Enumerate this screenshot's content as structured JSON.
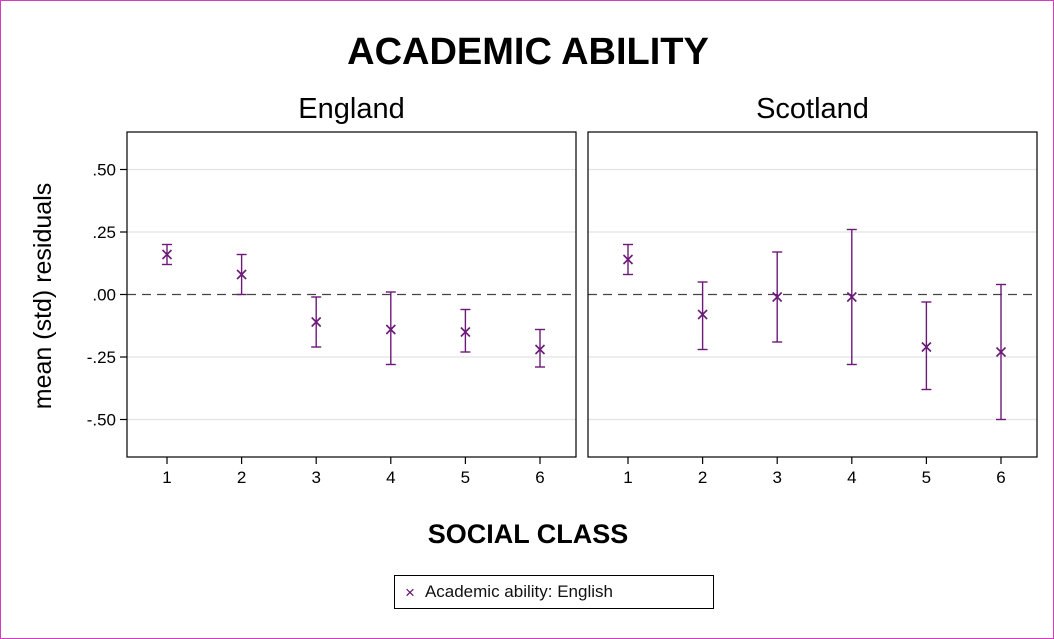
{
  "chart_data": {
    "type": "scatter",
    "subtype": "error-bar",
    "title": "ACADEMIC ABILITY",
    "xlabel": "SOCIAL CLASS",
    "ylabel": "mean (std) residuals",
    "ylim": [
      -0.65,
      0.65
    ],
    "yticks": [
      0.5,
      0.25,
      0.0,
      -0.25,
      -0.5
    ],
    "ytick_labels": [
      ".50",
      ".25",
      ".00",
      "-.25",
      "-.50"
    ],
    "categories": [
      "1",
      "2",
      "3",
      "4",
      "5",
      "6"
    ],
    "grid": true,
    "reference_line": {
      "y": 0,
      "style": "dashed"
    },
    "legend": {
      "position": "bottom-center",
      "entries": [
        "Academic ability: English"
      ]
    },
    "series_color": "#6b1a78",
    "panels": [
      {
        "name": "England",
        "points": [
          {
            "x": "1",
            "mean": 0.16,
            "low": 0.12,
            "high": 0.2
          },
          {
            "x": "2",
            "mean": 0.08,
            "low": 0.0,
            "high": 0.16
          },
          {
            "x": "3",
            "mean": -0.11,
            "low": -0.21,
            "high": -0.01
          },
          {
            "x": "4",
            "mean": -0.14,
            "low": -0.28,
            "high": 0.01
          },
          {
            "x": "5",
            "mean": -0.15,
            "low": -0.23,
            "high": -0.06
          },
          {
            "x": "6",
            "mean": -0.22,
            "low": -0.29,
            "high": -0.14
          }
        ]
      },
      {
        "name": "Scotland",
        "points": [
          {
            "x": "1",
            "mean": 0.14,
            "low": 0.08,
            "high": 0.2
          },
          {
            "x": "2",
            "mean": -0.08,
            "low": -0.22,
            "high": 0.05
          },
          {
            "x": "3",
            "mean": -0.01,
            "low": -0.19,
            "high": 0.17
          },
          {
            "x": "4",
            "mean": -0.01,
            "low": -0.28,
            "high": 0.26
          },
          {
            "x": "5",
            "mean": -0.21,
            "low": -0.38,
            "high": -0.03
          },
          {
            "x": "6",
            "mean": -0.23,
            "low": -0.5,
            "high": 0.04
          }
        ]
      }
    ]
  }
}
